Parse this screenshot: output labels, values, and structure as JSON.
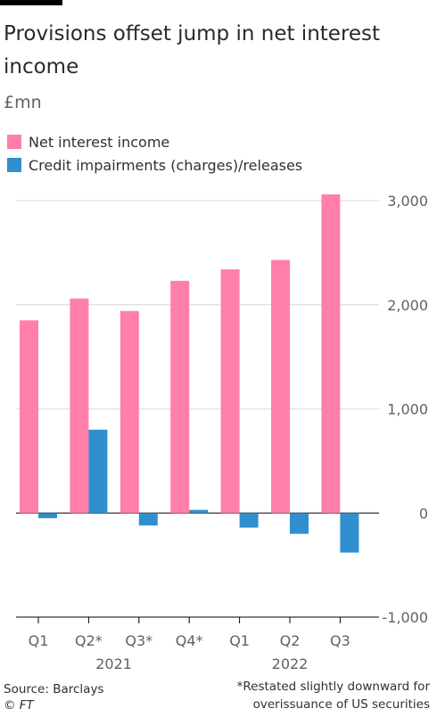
{
  "header": {
    "title": "Provisions offset jump in net interest income",
    "subtitle": "£mn"
  },
  "legend": [
    {
      "label": "Net interest income",
      "color": "#ff7faa"
    },
    {
      "label": "Credit impairments (charges)/releases",
      "color": "#2f8fcf"
    }
  ],
  "chart_data": {
    "type": "bar",
    "categories": [
      "Q1",
      "Q2*",
      "Q3*",
      "Q4*",
      "Q1",
      "Q2",
      "Q3"
    ],
    "year_groups": [
      {
        "label": "2021",
        "start": 0,
        "end": 3
      },
      {
        "label": "2022",
        "start": 4,
        "end": 6
      }
    ],
    "series": [
      {
        "name": "Net interest income",
        "color": "#ff7faa",
        "values": [
          1850,
          2060,
          1940,
          2230,
          2340,
          2430,
          3060
        ]
      },
      {
        "name": "Credit impairments (charges)/releases",
        "color": "#2f8fcf",
        "values": [
          -50,
          800,
          -120,
          30,
          -140,
          -200,
          -380
        ]
      }
    ],
    "ylim": [
      -1000,
      3000
    ],
    "yticks": [
      3000,
      2000,
      1000,
      0,
      -1000
    ],
    "ytick_labels": [
      "3,000",
      "2,000",
      "1,000",
      "0",
      "-1,000"
    ],
    "axis_position": "right",
    "grid": true
  },
  "footer": {
    "source": "Source: Barclays",
    "credit": "© FT",
    "footnote": "*Restated slightly downward for overissuance of US securities"
  }
}
